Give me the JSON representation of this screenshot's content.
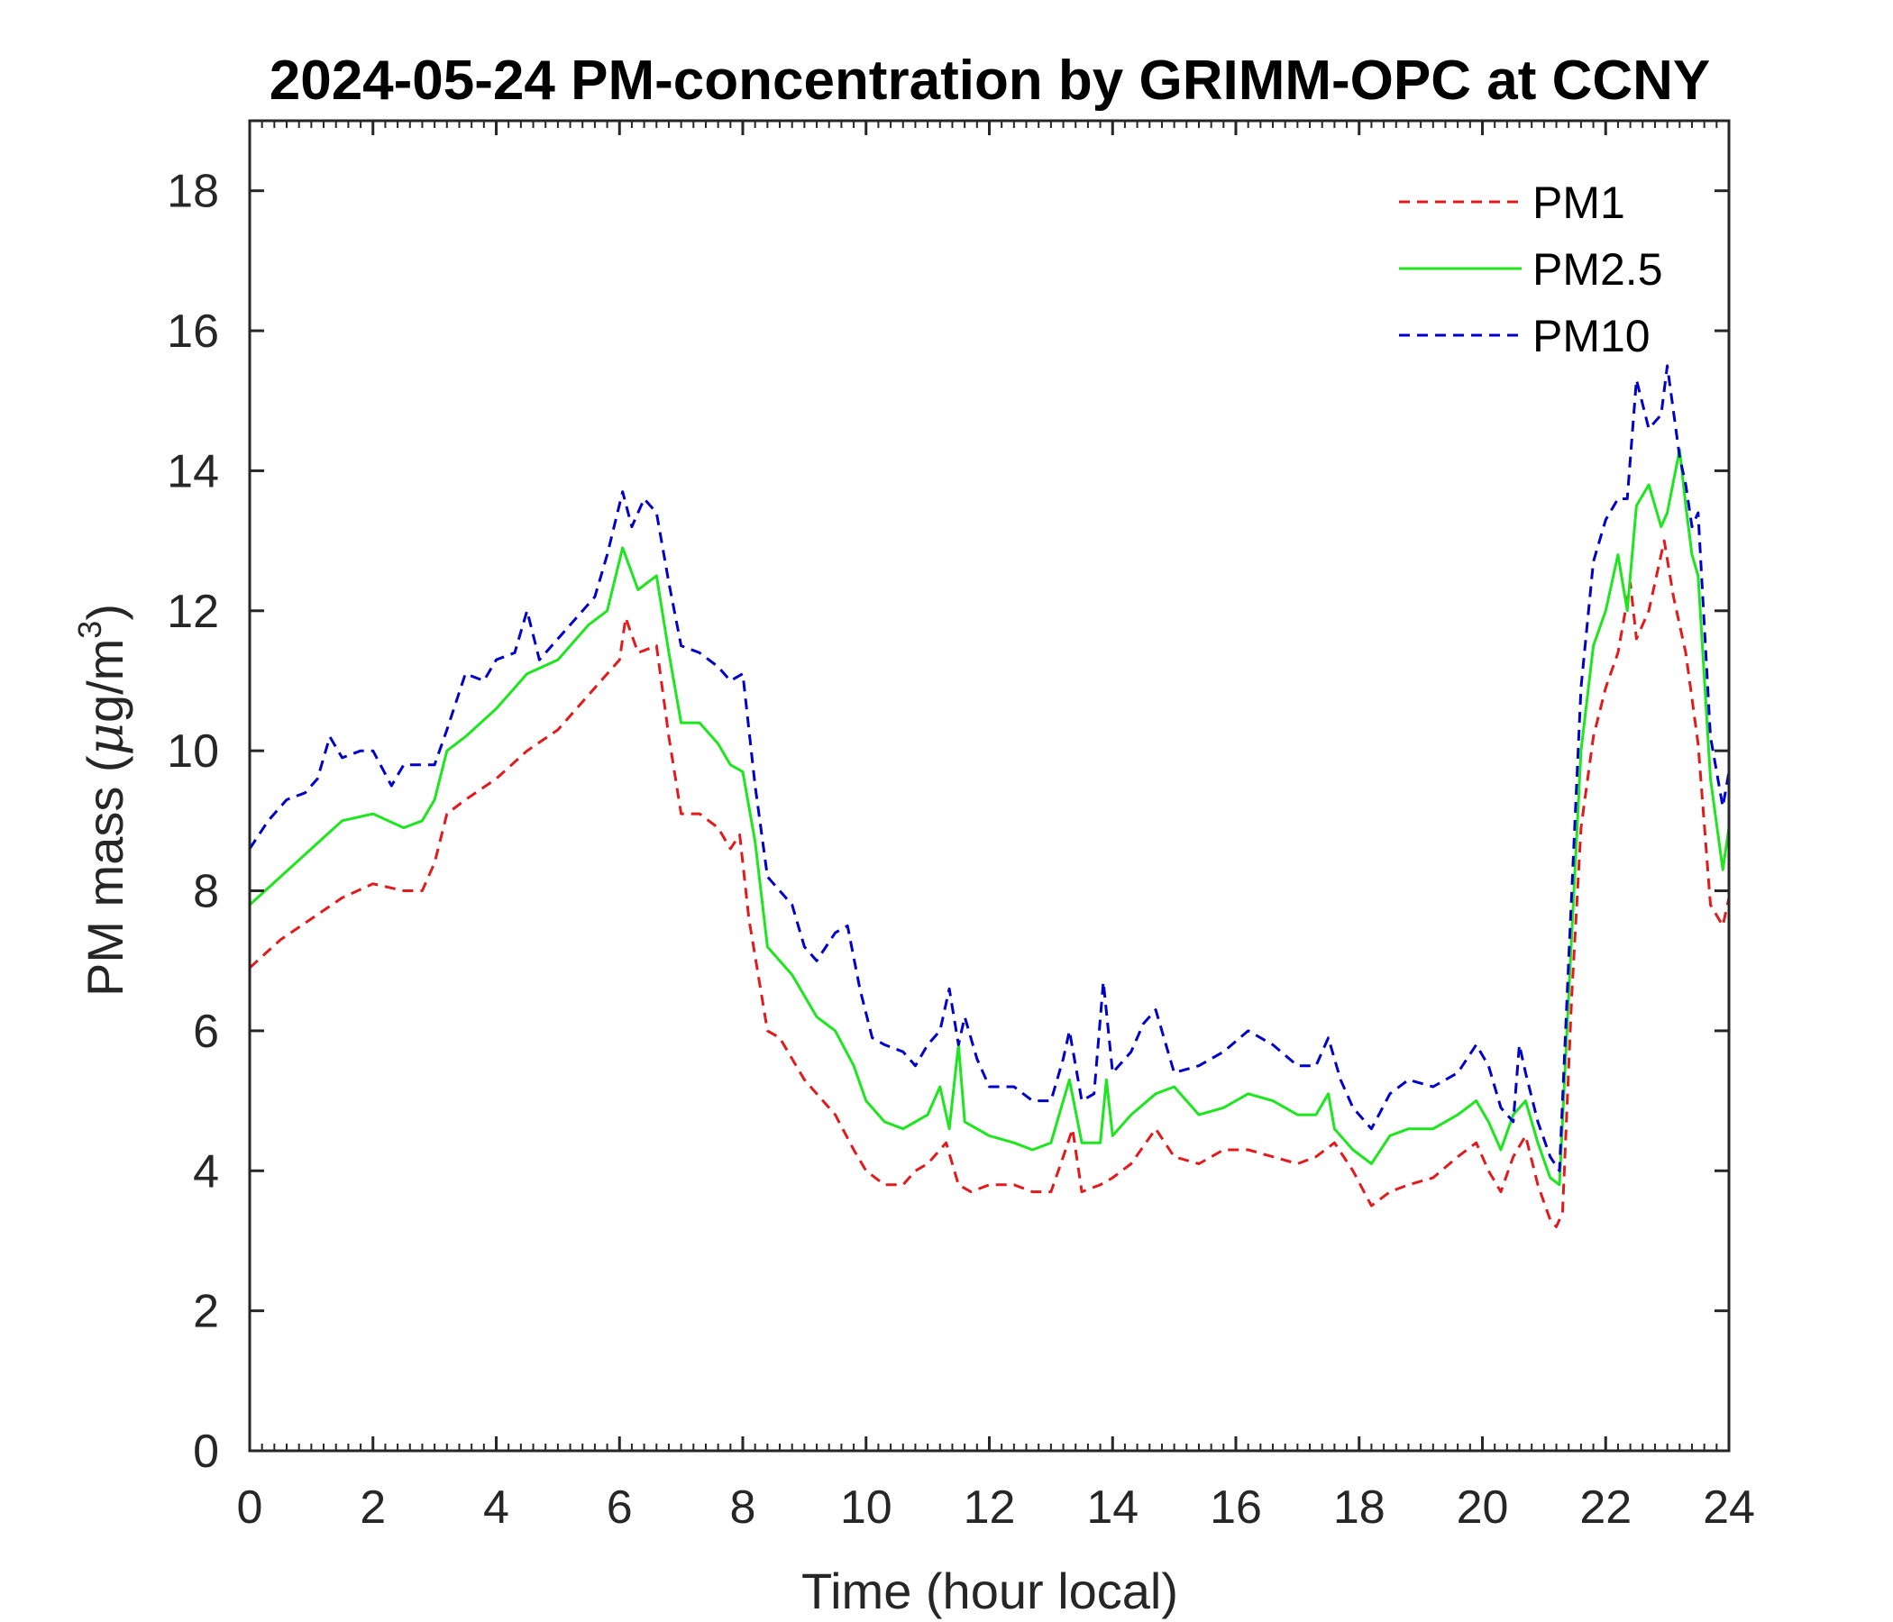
{
  "chart_data": {
    "type": "line",
    "title": "2024-05-24 PM-concentration by GRIMM-OPC at CCNY",
    "xlabel": "Time (hour local)",
    "ylabel_prefix": "PM mass (",
    "ylabel_mu": "μ",
    "ylabel_unit": "g/m",
    "ylabel_sup": "3",
    "ylabel_suffix": ")",
    "xlim": [
      0,
      24
    ],
    "ylim": [
      0,
      19
    ],
    "xticks": [
      0,
      2,
      4,
      6,
      8,
      10,
      12,
      14,
      16,
      18,
      20,
      22,
      24
    ],
    "yticks": [
      0,
      2,
      4,
      6,
      8,
      10,
      12,
      14,
      16,
      18
    ],
    "xtick_labels": [
      "0",
      "2",
      "4",
      "6",
      "8",
      "10",
      "12",
      "14",
      "16",
      "18",
      "20",
      "22",
      "24"
    ],
    "ytick_labels": [
      "0",
      "2",
      "4",
      "6",
      "8",
      "10",
      "12",
      "14",
      "16",
      "18"
    ],
    "grid": false,
    "legend_position": "top-right",
    "series": [
      {
        "name": "PM1",
        "color": "#e31a1c",
        "dash": "dashed",
        "x": [
          0,
          0.5,
          1,
          1.5,
          2,
          2.5,
          2.8,
          3,
          3.2,
          3.5,
          4,
          4.5,
          5,
          5.5,
          6,
          6.1,
          6.3,
          6.6,
          6.8,
          7,
          7.3,
          7.6,
          7.8,
          7.95,
          8.1,
          8.4,
          8.6,
          8.8,
          9,
          9.2,
          9.5,
          9.8,
          10,
          10.3,
          10.6,
          10.8,
          11,
          11.3,
          11.5,
          11.7,
          12,
          12.4,
          12.7,
          13,
          13.2,
          13.35,
          13.5,
          13.8,
          14,
          14.3,
          14.7,
          15,
          15.4,
          15.8,
          16.2,
          16.6,
          17,
          17.3,
          17.6,
          17.9,
          18.2,
          18.5,
          18.8,
          19.2,
          19.6,
          19.9,
          20.1,
          20.3,
          20.5,
          20.7,
          20.9,
          21.1,
          21.2,
          21.3,
          21.45,
          21.6,
          21.8,
          22,
          22.2,
          22.4,
          22.5,
          22.7,
          22.95,
          23.1,
          23.3,
          23.5,
          23.7,
          23.9,
          24
        ],
        "y": [
          6.9,
          7.3,
          7.6,
          7.9,
          8.1,
          8.0,
          8.0,
          8.4,
          9.1,
          9.3,
          9.6,
          10.0,
          10.3,
          10.8,
          11.3,
          11.9,
          11.4,
          11.5,
          10.2,
          9.1,
          9.1,
          8.9,
          8.6,
          8.8,
          7.6,
          6.0,
          5.9,
          5.6,
          5.3,
          5.1,
          4.8,
          4.3,
          4.0,
          3.8,
          3.8,
          4.0,
          4.1,
          4.4,
          3.8,
          3.7,
          3.8,
          3.8,
          3.7,
          3.7,
          4.2,
          4.6,
          3.7,
          3.8,
          3.9,
          4.1,
          4.6,
          4.2,
          4.1,
          4.3,
          4.3,
          4.2,
          4.1,
          4.2,
          4.4,
          4.0,
          3.5,
          3.7,
          3.8,
          3.9,
          4.2,
          4.4,
          4.0,
          3.7,
          4.2,
          4.5,
          3.8,
          3.3,
          3.2,
          3.4,
          6.5,
          8.9,
          10.2,
          10.9,
          11.4,
          12.4,
          11.6,
          12.0,
          13.0,
          12.2,
          11.4,
          10.1,
          7.8,
          7.5,
          7.9
        ]
      },
      {
        "name": "PM2.5",
        "color": "#1ee61e",
        "dash": "solid",
        "x": [
          0,
          0.5,
          1,
          1.5,
          2,
          2.5,
          2.8,
          3,
          3.2,
          3.5,
          4,
          4.5,
          5,
          5.5,
          5.8,
          6.05,
          6.3,
          6.6,
          6.8,
          7,
          7.3,
          7.6,
          7.8,
          8,
          8.2,
          8.4,
          8.6,
          8.8,
          9,
          9.2,
          9.5,
          9.8,
          10,
          10.3,
          10.6,
          10.8,
          11,
          11.2,
          11.35,
          11.5,
          11.6,
          11.8,
          12,
          12.4,
          12.7,
          13,
          13.2,
          13.3,
          13.5,
          13.8,
          13.9,
          14,
          14.3,
          14.7,
          15,
          15.4,
          15.8,
          16.2,
          16.6,
          17,
          17.3,
          17.5,
          17.6,
          17.9,
          18.2,
          18.5,
          18.8,
          19.2,
          19.6,
          19.9,
          20.1,
          20.3,
          20.5,
          20.7,
          20.9,
          21.1,
          21.25,
          21.4,
          21.6,
          21.8,
          22,
          22.2,
          22.35,
          22.5,
          22.7,
          22.9,
          23,
          23.2,
          23.3,
          23.4,
          23.5,
          23.7,
          23.9,
          24
        ],
        "y": [
          7.8,
          8.2,
          8.6,
          9.0,
          9.1,
          8.9,
          9.0,
          9.3,
          10.0,
          10.2,
          10.6,
          11.1,
          11.3,
          11.8,
          12.0,
          12.9,
          12.3,
          12.5,
          11.4,
          10.4,
          10.4,
          10.1,
          9.8,
          9.7,
          8.7,
          7.2,
          7.0,
          6.8,
          6.5,
          6.2,
          6.0,
          5.5,
          5.0,
          4.7,
          4.6,
          4.7,
          4.8,
          5.2,
          4.6,
          5.8,
          4.7,
          4.6,
          4.5,
          4.4,
          4.3,
          4.4,
          5.0,
          5.3,
          4.4,
          4.4,
          5.3,
          4.5,
          4.8,
          5.1,
          5.2,
          4.8,
          4.9,
          5.1,
          5.0,
          4.8,
          4.8,
          5.1,
          4.6,
          4.3,
          4.1,
          4.5,
          4.6,
          4.6,
          4.8,
          5.0,
          4.7,
          4.3,
          4.8,
          5.0,
          4.4,
          3.9,
          3.8,
          6.5,
          10.0,
          11.5,
          12.0,
          12.8,
          12.0,
          13.5,
          13.8,
          13.2,
          13.4,
          14.3,
          13.5,
          12.8,
          12.5,
          9.6,
          8.3,
          8.9
        ]
      },
      {
        "name": "PM10",
        "color": "#0000cd",
        "dash": "dashed",
        "x": [
          0,
          0.3,
          0.6,
          0.9,
          1.1,
          1.3,
          1.5,
          1.8,
          2,
          2.3,
          2.5,
          2.8,
          3,
          3.2,
          3.5,
          3.8,
          4,
          4.3,
          4.5,
          4.7,
          5,
          5.3,
          5.6,
          5.8,
          6.05,
          6.2,
          6.4,
          6.6,
          6.8,
          7,
          7.3,
          7.6,
          7.8,
          8,
          8.2,
          8.4,
          8.6,
          8.8,
          9,
          9.2,
          9.5,
          9.7,
          9.9,
          10.1,
          10.3,
          10.6,
          10.8,
          11,
          11.2,
          11.35,
          11.5,
          11.6,
          11.8,
          12,
          12.4,
          12.7,
          13,
          13.2,
          13.3,
          13.5,
          13.7,
          13.85,
          14,
          14.3,
          14.5,
          14.7,
          15,
          15.4,
          15.8,
          16.2,
          16.6,
          17,
          17.3,
          17.5,
          17.7,
          17.9,
          18.2,
          18.5,
          18.8,
          19.2,
          19.6,
          19.9,
          20.1,
          20.3,
          20.5,
          20.6,
          20.7,
          20.9,
          21.1,
          21.25,
          21.4,
          21.6,
          21.8,
          22,
          22.2,
          22.35,
          22.5,
          22.7,
          22.9,
          23,
          23.2,
          23.3,
          23.4,
          23.5,
          23.7,
          23.9,
          24
        ],
        "y": [
          8.6,
          9.0,
          9.3,
          9.4,
          9.6,
          10.2,
          9.9,
          10.0,
          10.0,
          9.5,
          9.8,
          9.8,
          9.8,
          10.3,
          11.1,
          11.0,
          11.3,
          11.4,
          12.0,
          11.3,
          11.6,
          11.9,
          12.2,
          12.8,
          13.7,
          13.2,
          13.6,
          13.4,
          12.4,
          11.5,
          11.4,
          11.2,
          11.0,
          11.1,
          9.5,
          8.2,
          8.0,
          7.8,
          7.2,
          7.0,
          7.4,
          7.5,
          6.6,
          5.9,
          5.8,
          5.7,
          5.5,
          5.8,
          6.0,
          6.6,
          5.8,
          6.2,
          5.6,
          5.2,
          5.2,
          5.0,
          5.0,
          5.6,
          6.0,
          5.0,
          5.1,
          6.7,
          5.4,
          5.7,
          6.1,
          6.3,
          5.4,
          5.5,
          5.7,
          6.0,
          5.8,
          5.5,
          5.5,
          5.9,
          5.3,
          4.9,
          4.6,
          5.1,
          5.3,
          5.2,
          5.4,
          5.8,
          5.5,
          4.9,
          4.7,
          5.8,
          5.4,
          4.7,
          4.2,
          4.0,
          7.0,
          10.9,
          12.7,
          13.3,
          13.6,
          13.6,
          15.3,
          14.6,
          14.8,
          15.5,
          14.2,
          13.8,
          13.2,
          13.4,
          10.2,
          9.2,
          9.7
        ]
      }
    ]
  }
}
